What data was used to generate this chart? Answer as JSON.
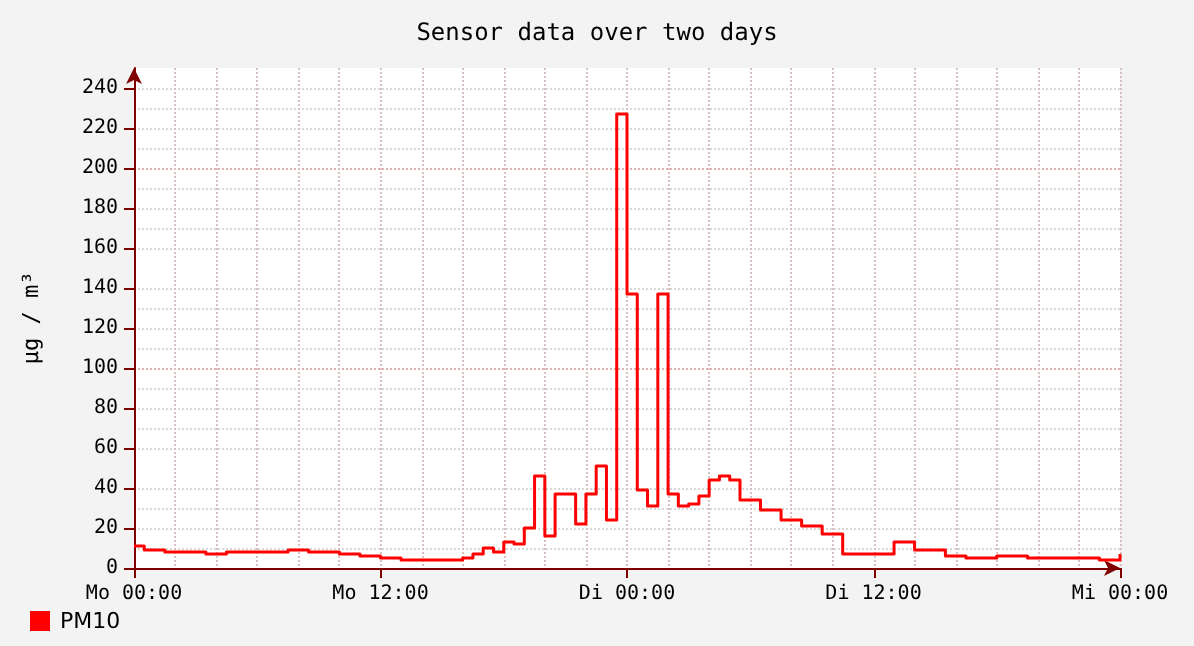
{
  "chart_data": {
    "type": "step",
    "title": "Sensor data over two days",
    "ylabel": "µg / m³",
    "categories": [
      "Mo 00:00",
      null,
      null,
      null,
      null,
      null,
      null,
      null,
      null,
      null,
      null,
      null,
      null,
      null,
      null,
      null,
      null,
      null,
      null,
      null,
      null,
      null,
      null,
      null,
      "Mo 12:00",
      null,
      null,
      null,
      null,
      null,
      null,
      null,
      null,
      null,
      null,
      null,
      null,
      null,
      null,
      null,
      null,
      null,
      null,
      null,
      null,
      null,
      null,
      null,
      "Di 00:00",
      null,
      null,
      null,
      null,
      null,
      null,
      null,
      null,
      null,
      null,
      null,
      null,
      null,
      null,
      null,
      null,
      null,
      null,
      null,
      null,
      null,
      null,
      null,
      "Di 12:00",
      null,
      null,
      null,
      null,
      null,
      null,
      null,
      null,
      null,
      null,
      null,
      null,
      null,
      null,
      null,
      null,
      null,
      null,
      null,
      null,
      null,
      null,
      null,
      "Mi 00:00"
    ],
    "series": [
      {
        "name": "PM10",
        "color": "#ff0000",
        "values": [
          11,
          9,
          9,
          8,
          8,
          8,
          8,
          7,
          7,
          8,
          8,
          8,
          8,
          8,
          8,
          9,
          9,
          8,
          8,
          8,
          7,
          7,
          6,
          6,
          5,
          5,
          4,
          4,
          4,
          4,
          4,
          4,
          5,
          7,
          10,
          8,
          13,
          12,
          20,
          46,
          16,
          37,
          37,
          22,
          37,
          51,
          24,
          227,
          137,
          39,
          31,
          137,
          37,
          31,
          32,
          36,
          44,
          46,
          44,
          34,
          34,
          29,
          29,
          24,
          24,
          21,
          21,
          17,
          17,
          7,
          7,
          7,
          7,
          7,
          13,
          13,
          9,
          9,
          9,
          6,
          6,
          5,
          5,
          5,
          6,
          6,
          6,
          5,
          5,
          5,
          5,
          5,
          5,
          5,
          4,
          4,
          7
        ]
      }
    ],
    "ylim": [
      0,
      250
    ],
    "yticks": [
      0,
      20,
      40,
      60,
      80,
      100,
      120,
      140,
      160,
      180,
      200,
      220,
      240
    ],
    "grid": true,
    "legend": "bottom left",
    "line_style": "solid",
    "marker": "none"
  }
}
